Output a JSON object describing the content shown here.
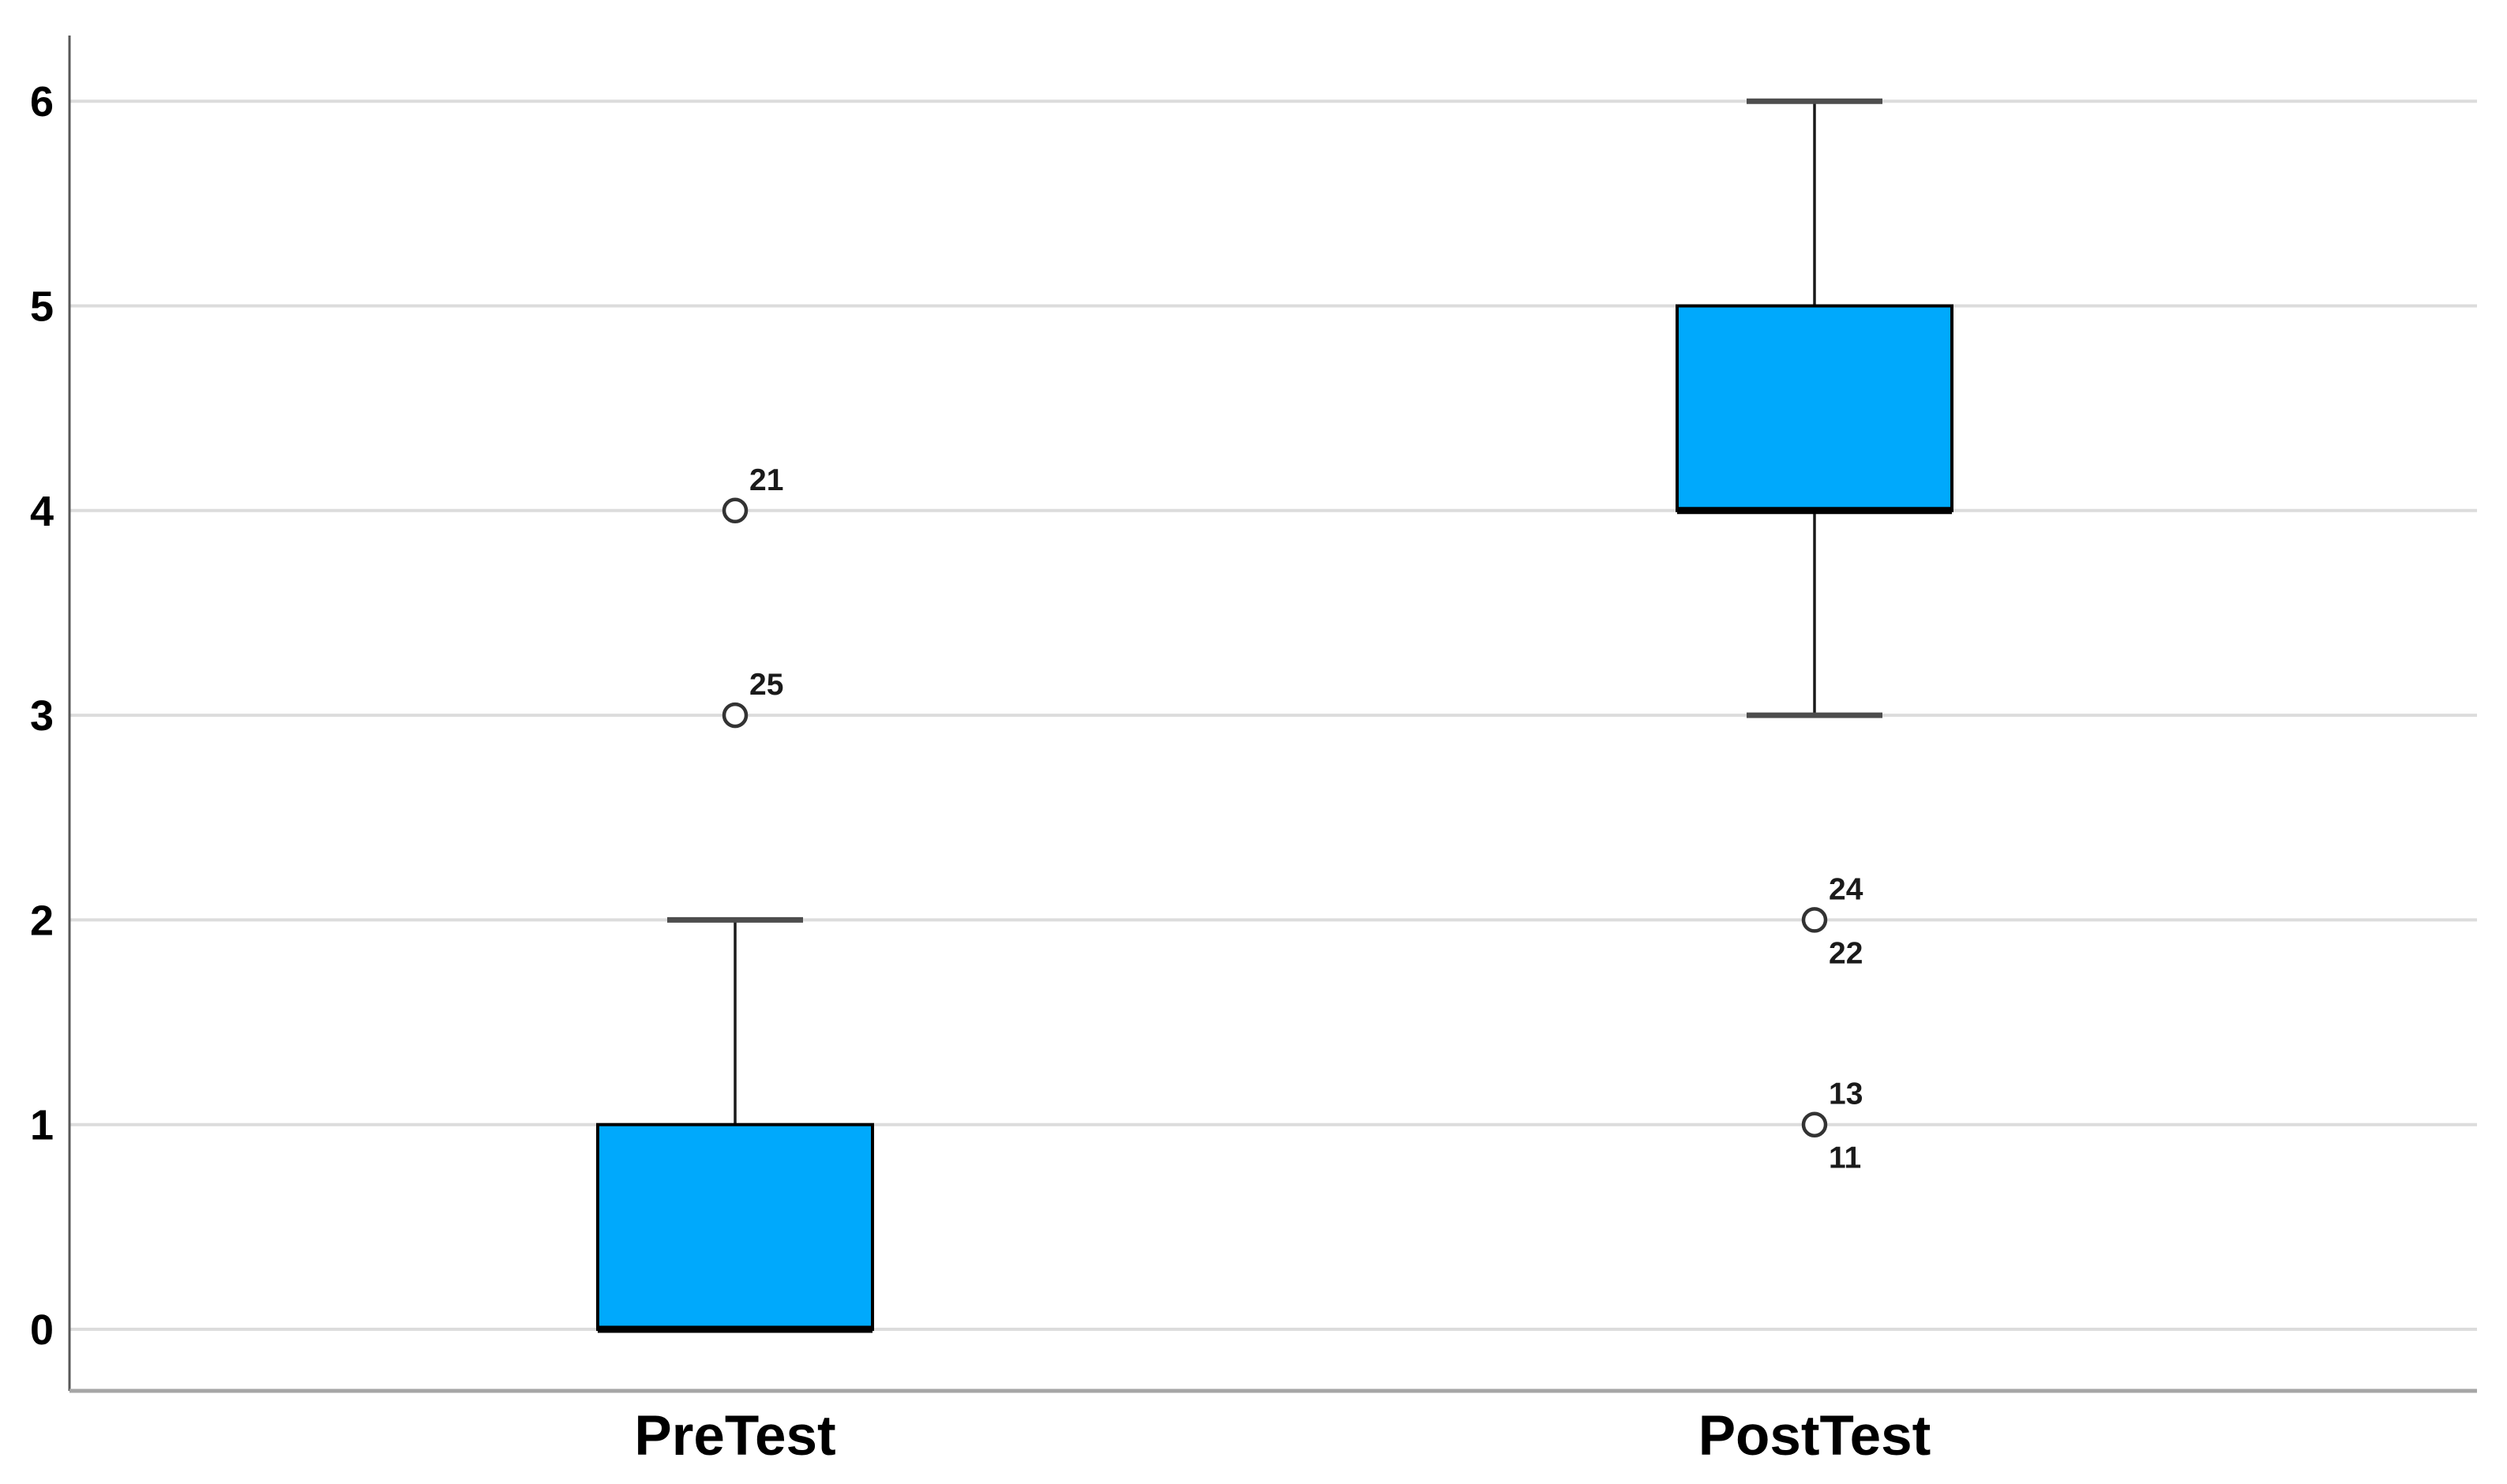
{
  "page": {
    "background": "#ffffff"
  },
  "chart_data": {
    "type": "boxplot",
    "title": "",
    "xlabel": "",
    "ylabel": "",
    "categories": [
      "PreTest",
      "PostTest"
    ],
    "ylim": [
      0,
      6
    ],
    "yticks": [
      "0",
      "1",
      "2",
      "3",
      "4",
      "5",
      "6"
    ],
    "grid": "horizontal-lines",
    "legend": "none",
    "boxes": [
      {
        "category": "PreTest",
        "q1": 0,
        "median": 0,
        "q3": 1,
        "whisker_low": 0,
        "whisker_high": 2,
        "outliers": [
          {
            "value": 4,
            "labels_above": [
              "21"
            ],
            "labels_below": []
          },
          {
            "value": 3,
            "labels_above": [
              "25"
            ],
            "labels_below": []
          }
        ]
      },
      {
        "category": "PostTest",
        "q1": 4,
        "median": 4,
        "q3": 5,
        "whisker_low": 3,
        "whisker_high": 6,
        "outliers": [
          {
            "value": 2,
            "labels_above": [
              "24"
            ],
            "labels_below": [
              "22"
            ]
          },
          {
            "value": 1,
            "labels_above": [
              "13"
            ],
            "labels_below": [
              "11"
            ]
          }
        ]
      }
    ],
    "colors": {
      "box_fill": "#00A9FC",
      "box_border": "#000000",
      "median_line": "#000000",
      "whisker_line": "#1a1a1a",
      "whisker_cap": "#4d4d4d",
      "outlier_circle_stroke": "#333333",
      "outlier_circle_fill": "#ffffff",
      "gridline": "#DCDCDC",
      "y_axis_line": "#595959",
      "x_axis_line": "#A6A6A6",
      "tick_label": "#000000",
      "category_label": "#000000",
      "outlier_label": "#1a1a1a"
    }
  }
}
